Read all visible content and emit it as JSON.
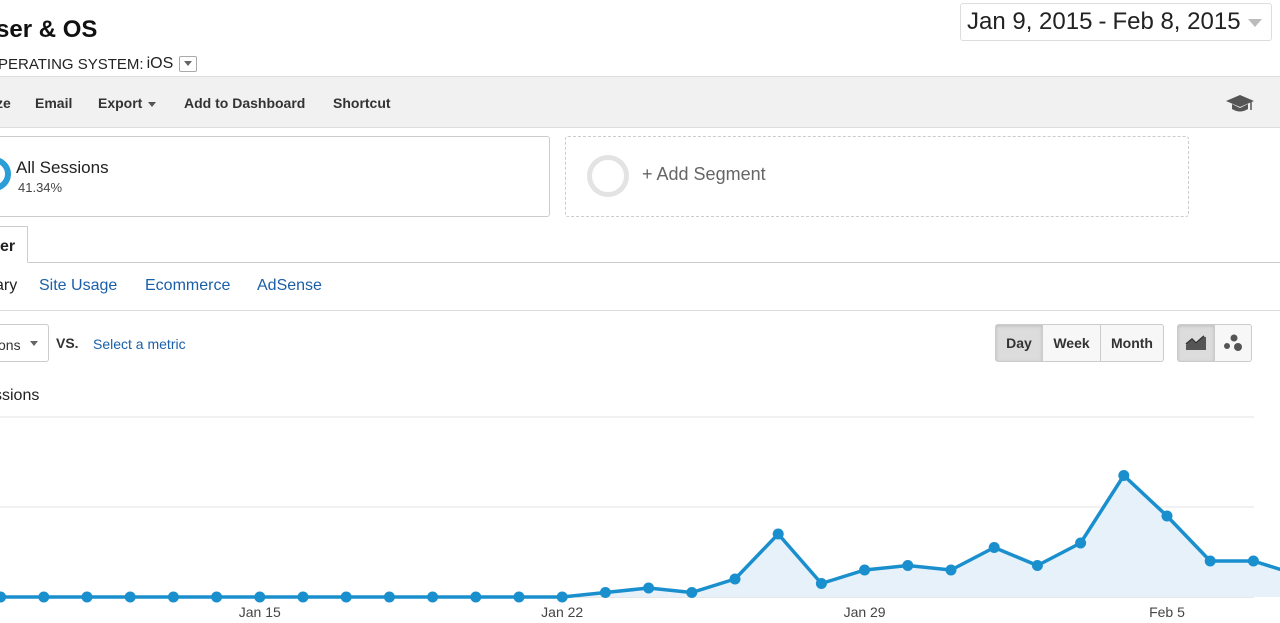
{
  "header": {
    "title": "ser & OS",
    "dimension_label": "PERATING SYSTEM:",
    "dimension_value": "iOS"
  },
  "date_range": {
    "start": "Jan 9, 2015",
    "separator": "-",
    "end": "Feb 8, 2015"
  },
  "toolbar": {
    "items": [
      "ze",
      "Email",
      "Export",
      "Add to Dashboard",
      "Shortcut"
    ]
  },
  "segments": {
    "active_name": "All Sessions",
    "active_pct": "41.34%",
    "add_label": "+ Add Segment"
  },
  "tabs": {
    "active": "er",
    "subtabs": [
      "ary",
      "Site Usage",
      "Ecommerce",
      "AdSense"
    ]
  },
  "metric": {
    "primary": "ons",
    "vs_label": "VS.",
    "select_label": "Select a metric",
    "series_label": "ssions"
  },
  "granularity": [
    "Day",
    "Week",
    "Month"
  ],
  "granularity_selected": "Day",
  "colors": {
    "line": "#1a8fcd",
    "fill": "#e6f1fa",
    "link": "#1a5fa8"
  },
  "icons": {
    "toolbar_right": "graduation-cap-icon",
    "view_line": "line-chart-icon",
    "view_motion": "motion-chart-icon"
  },
  "chart_data": {
    "type": "area",
    "x": [
      "Jan 9",
      "Jan 10",
      "Jan 11",
      "Jan 12",
      "Jan 13",
      "Jan 14",
      "Jan 15",
      "Jan 16",
      "Jan 17",
      "Jan 18",
      "Jan 19",
      "Jan 20",
      "Jan 21",
      "Jan 22",
      "Jan 23",
      "Jan 24",
      "Jan 25",
      "Jan 26",
      "Jan 27",
      "Jan 28",
      "Jan 29",
      "Jan 30",
      "Jan 31",
      "Feb 1",
      "Feb 2",
      "Feb 3",
      "Feb 4",
      "Feb 5",
      "Feb 6",
      "Feb 7",
      "Feb 8"
    ],
    "tick_labels": [
      "Jan 15",
      "Jan 22",
      "Jan 29",
      "Feb 5"
    ],
    "tick_indices": [
      6,
      13,
      20,
      27
    ],
    "values": [
      0,
      0,
      0,
      0,
      0,
      0,
      0,
      0,
      0,
      0,
      0,
      0,
      0,
      0,
      1,
      2,
      1,
      4,
      14,
      3,
      6,
      7,
      6,
      11,
      7,
      12,
      27,
      18,
      8,
      8,
      5
    ],
    "ylim": [
      0,
      40
    ],
    "gridlines": [
      20,
      40
    ],
    "grid": true
  }
}
